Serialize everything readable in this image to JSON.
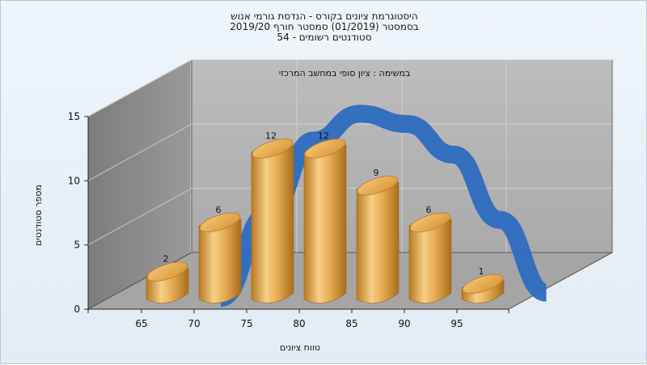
{
  "chart_data": {
    "type": "bar",
    "title_lines": [
      "היסטוגרמת ציונים בקורס - הנדסת גורמי אנוש",
      "בסמסטר  (01/2019)  סמסטר חורף 2019/20",
      "סטודנטים רשומים - 54"
    ],
    "subtitle": "במשימה : ציון סופי במחשב המרכזי",
    "xlabel": "טווח ציונים",
    "ylabel": "מספר סטודנטים",
    "categories": [
      "65",
      "70",
      "75",
      "80",
      "85",
      "90",
      "95"
    ],
    "values": [
      2,
      6,
      12,
      12,
      9,
      6,
      1
    ],
    "yticks": [
      "0",
      "5",
      "10",
      "15"
    ],
    "ylim": [
      0,
      15
    ],
    "grid": true,
    "curve_values": [
      0,
      6.5,
      12.3,
      14.4,
      13.6,
      11.2,
      6.1,
      0.4
    ],
    "colors": {
      "bar": "#e2a543",
      "curve": "#2f6cc0",
      "back_wall": "#b4b4b4",
      "side_wall": "#8a8a8a",
      "floor": "#a7a7a7"
    }
  }
}
